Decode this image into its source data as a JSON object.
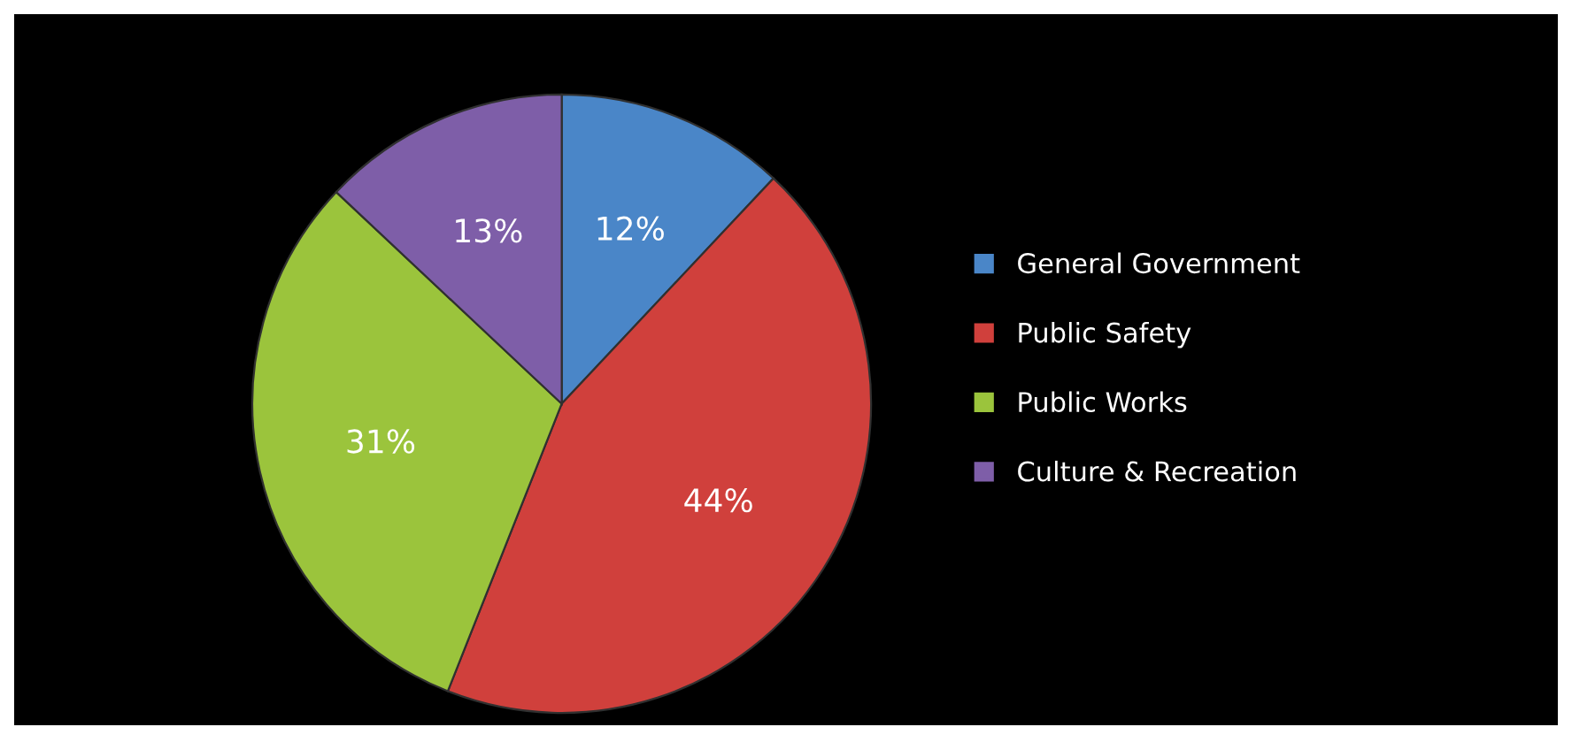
{
  "chart_data": {
    "type": "pie",
    "categories": [
      "General Government",
      "Public Safety",
      "Public Works",
      "Culture & Recreation"
    ],
    "values": [
      12,
      44,
      31,
      13
    ],
    "value_labels": [
      "12%",
      "44%",
      "31%",
      "13%"
    ],
    "colors": [
      "#4a86c8",
      "#d0403c",
      "#9bc43c",
      "#7e5ea8"
    ],
    "legend": "right"
  }
}
